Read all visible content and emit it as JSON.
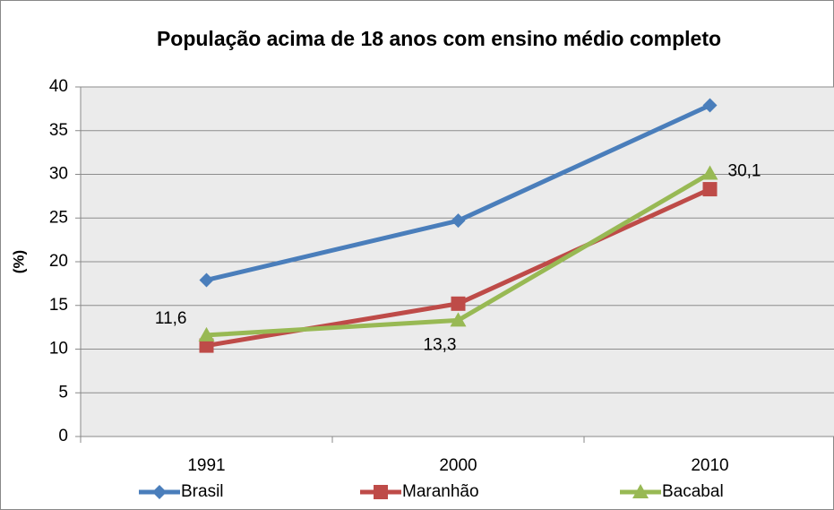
{
  "chart_data": {
    "type": "line",
    "title": "População acima de 18 anos com ensino médio completo",
    "y_label": "(%)",
    "categories": [
      "1991",
      "2000",
      "2010"
    ],
    "series": [
      {
        "name": "Brasil",
        "color": "#4a7ebb",
        "marker": "diamond",
        "values": [
          17.9,
          24.7,
          37.9
        ]
      },
      {
        "name": "Maranhão",
        "color": "#be4b48",
        "marker": "square",
        "values": [
          10.4,
          15.2,
          28.3
        ]
      },
      {
        "name": "Bacabal",
        "color": "#98b954",
        "marker": "triangle",
        "values": [
          11.6,
          13.3,
          30.1
        ],
        "value_labels": [
          "11,6",
          "13,3",
          "30,1"
        ]
      }
    ],
    "ylim": [
      0,
      40
    ],
    "yticks": [
      0,
      5,
      10,
      15,
      20,
      25,
      30,
      35,
      40
    ],
    "grid": true,
    "legend": "bottom"
  }
}
